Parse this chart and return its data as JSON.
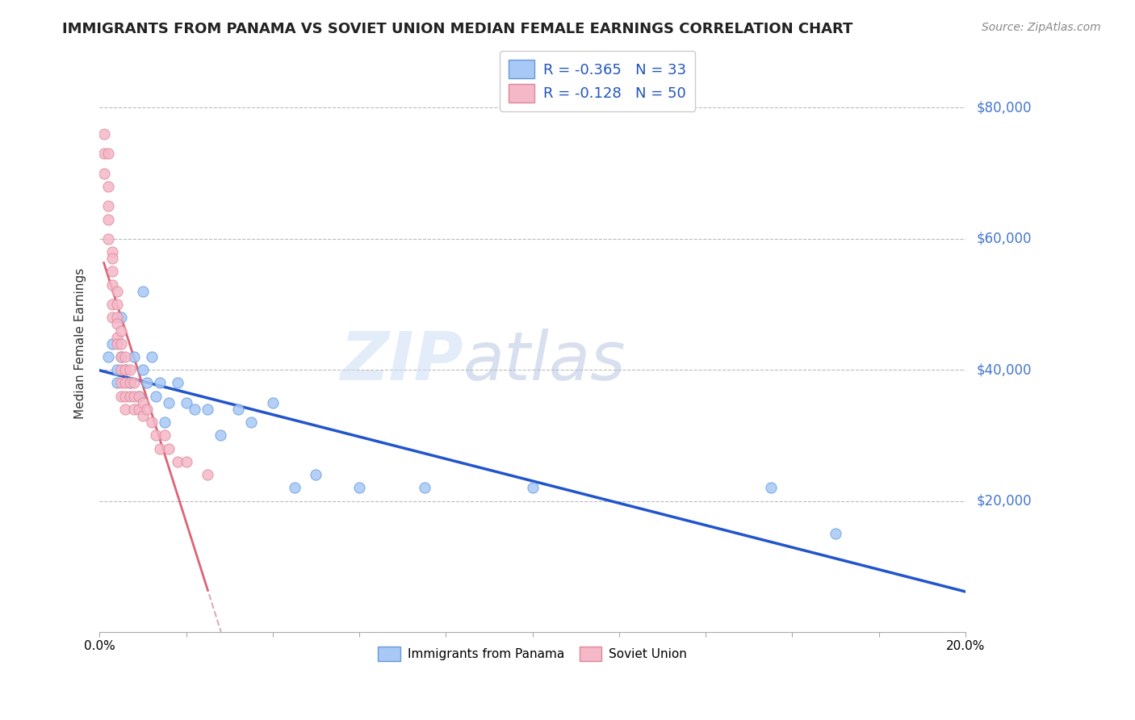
{
  "title": "IMMIGRANTS FROM PANAMA VS SOVIET UNION MEDIAN FEMALE EARNINGS CORRELATION CHART",
  "source": "Source: ZipAtlas.com",
  "ylabel": "Median Female Earnings",
  "yticks": [
    20000,
    40000,
    60000,
    80000
  ],
  "xlim": [
    0.0,
    0.2
  ],
  "ylim": [
    0,
    88000
  ],
  "watermark_zip": "ZIP",
  "watermark_atlas": "atlas",
  "panama_color": "#a8c8f5",
  "panama_edge_color": "#6699dd",
  "soviet_color": "#f5b8c8",
  "soviet_edge_color": "#dd8899",
  "panama_line_color": "#2255cc",
  "soviet_line_color": "#dd6677",
  "soviet_dash_color": "#ddaabb",
  "R_panama": -0.365,
  "N_panama": 33,
  "R_soviet": -0.128,
  "N_soviet": 50,
  "panama_x": [
    0.002,
    0.003,
    0.004,
    0.004,
    0.005,
    0.005,
    0.006,
    0.007,
    0.008,
    0.009,
    0.01,
    0.01,
    0.011,
    0.012,
    0.013,
    0.014,
    0.015,
    0.016,
    0.018,
    0.02,
    0.022,
    0.025,
    0.028,
    0.032,
    0.035,
    0.04,
    0.045,
    0.05,
    0.06,
    0.075,
    0.1,
    0.155,
    0.17
  ],
  "panama_y": [
    42000,
    44000,
    40000,
    38000,
    42000,
    48000,
    40000,
    38000,
    42000,
    36000,
    40000,
    52000,
    38000,
    42000,
    36000,
    38000,
    32000,
    35000,
    38000,
    35000,
    34000,
    34000,
    30000,
    34000,
    32000,
    35000,
    22000,
    24000,
    22000,
    22000,
    22000,
    22000,
    15000
  ],
  "soviet_x": [
    0.001,
    0.001,
    0.001,
    0.002,
    0.002,
    0.002,
    0.002,
    0.002,
    0.003,
    0.003,
    0.003,
    0.003,
    0.003,
    0.003,
    0.004,
    0.004,
    0.004,
    0.004,
    0.004,
    0.004,
    0.005,
    0.005,
    0.005,
    0.005,
    0.005,
    0.005,
    0.006,
    0.006,
    0.006,
    0.006,
    0.006,
    0.007,
    0.007,
    0.007,
    0.008,
    0.008,
    0.008,
    0.009,
    0.009,
    0.01,
    0.01,
    0.011,
    0.012,
    0.013,
    0.014,
    0.015,
    0.016,
    0.018,
    0.02,
    0.025
  ],
  "soviet_y": [
    76000,
    73000,
    70000,
    68000,
    65000,
    63000,
    60000,
    73000,
    58000,
    57000,
    55000,
    53000,
    50000,
    48000,
    52000,
    50000,
    48000,
    47000,
    45000,
    44000,
    46000,
    44000,
    42000,
    40000,
    38000,
    36000,
    42000,
    40000,
    38000,
    36000,
    34000,
    40000,
    38000,
    36000,
    38000,
    36000,
    34000,
    36000,
    34000,
    35000,
    33000,
    34000,
    32000,
    30000,
    28000,
    30000,
    28000,
    26000,
    26000,
    24000
  ]
}
